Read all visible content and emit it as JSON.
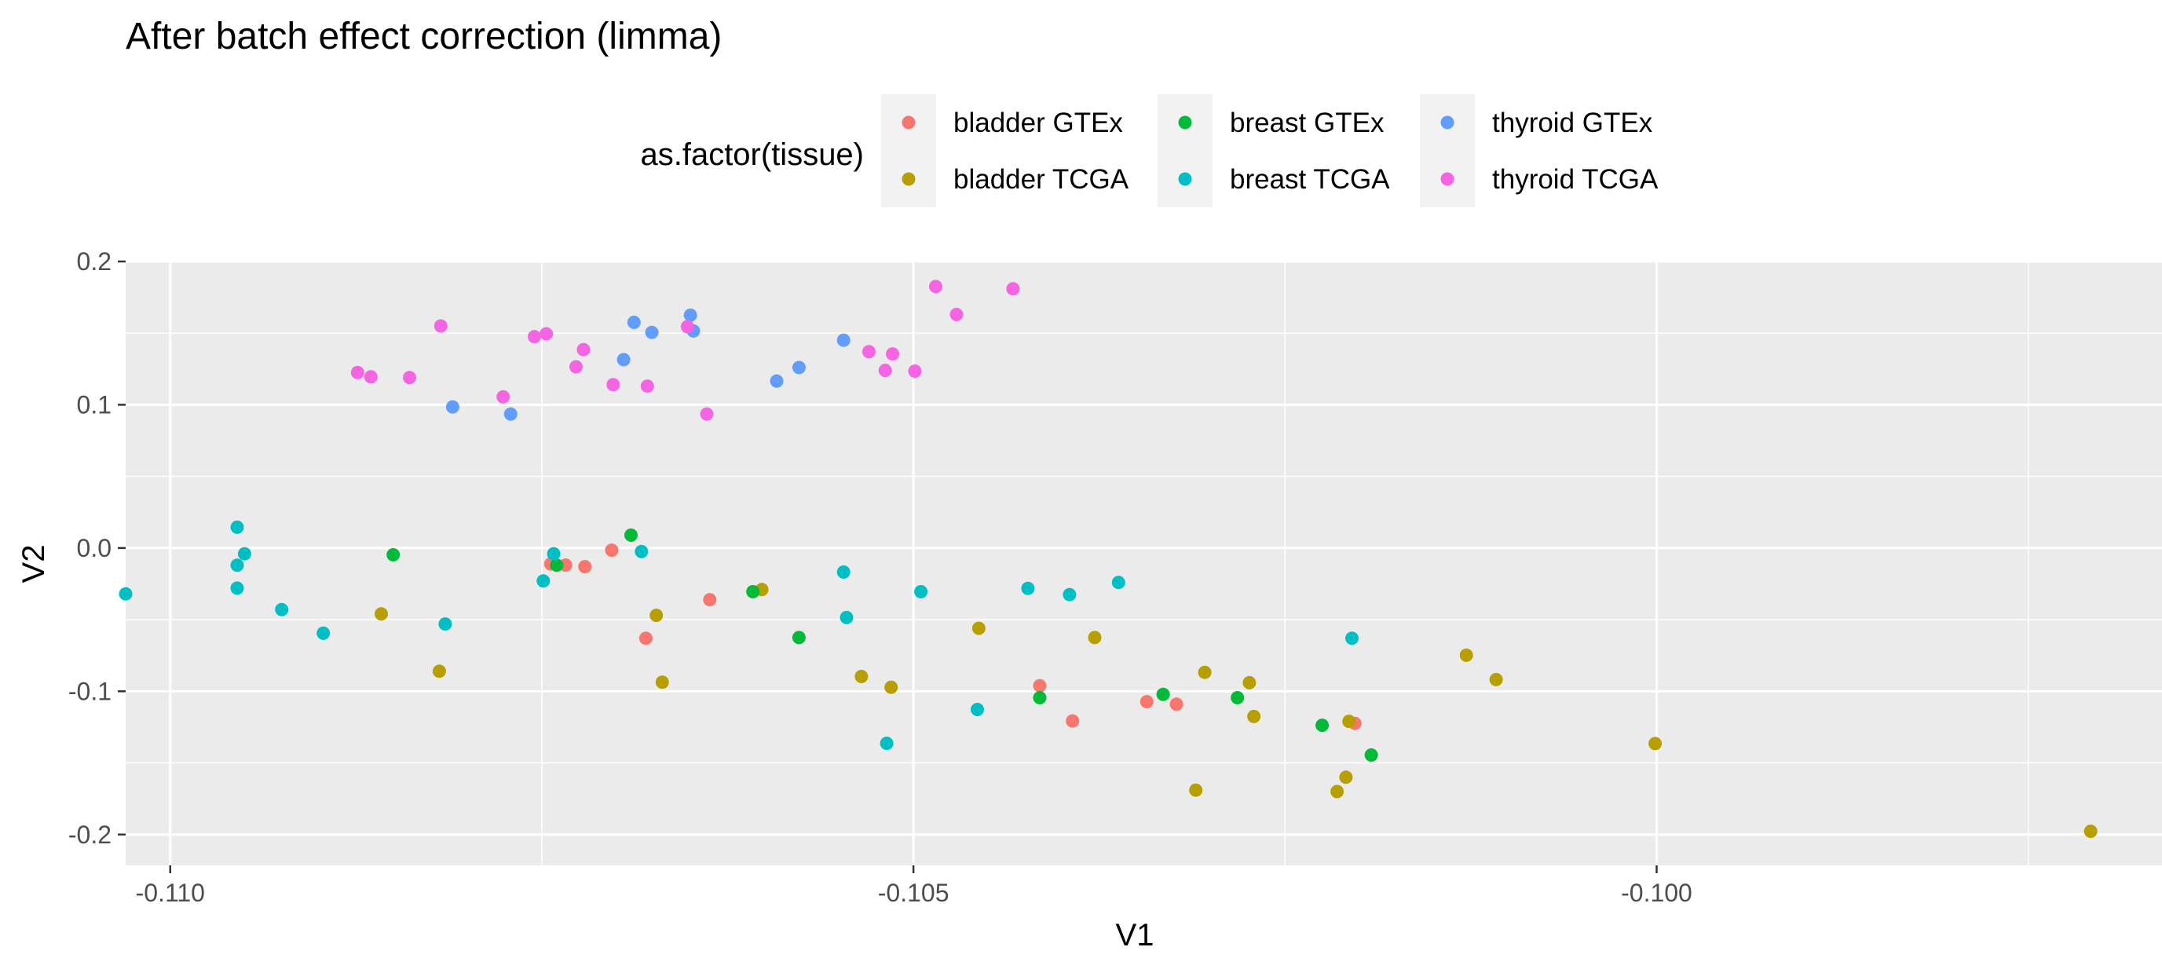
{
  "chart_data": {
    "type": "scatter",
    "title": "After batch effect correction (limma)",
    "xlabel": "V1",
    "ylabel": "V2",
    "xlim": [
      -0.1103,
      -0.0966
    ],
    "ylim": [
      -0.2215,
      0.2
    ],
    "x_ticks": [
      -0.11,
      -0.105,
      -0.1
    ],
    "x_tick_labels": [
      "-0.110",
      "-0.105",
      "-0.100"
    ],
    "y_ticks": [
      -0.2,
      -0.1,
      0.0,
      0.1,
      0.2
    ],
    "y_tick_labels": [
      "-0.2",
      "-0.1",
      "0.0",
      "0.1",
      "0.2"
    ],
    "grid": true,
    "legend": {
      "title": "as.factor(tissue)",
      "position": "top"
    },
    "series": [
      {
        "name": "bladder GTEx",
        "color": "#F8766D",
        "points": [
          [
            -0.10734,
            -0.0119
          ],
          [
            -0.10744,
            -0.0111
          ],
          [
            -0.10721,
            -0.013
          ],
          [
            -0.10703,
            -0.0015
          ],
          [
            -0.1068,
            -0.063
          ],
          [
            -0.10637,
            -0.0361
          ],
          [
            -0.10415,
            -0.0961
          ],
          [
            -0.10393,
            -0.1207
          ],
          [
            -0.10343,
            -0.1073
          ],
          [
            -0.10323,
            -0.109
          ],
          [
            -0.10203,
            -0.1224
          ]
        ]
      },
      {
        "name": "bladder TCGA",
        "color": "#B79F00",
        "points": [
          [
            -0.10858,
            -0.046
          ],
          [
            -0.10819,
            -0.086
          ],
          [
            -0.10673,
            -0.047
          ],
          [
            -0.10669,
            -0.0936
          ],
          [
            -0.10602,
            -0.029
          ],
          [
            -0.10535,
            -0.0897
          ],
          [
            -0.10515,
            -0.0972
          ],
          [
            -0.10456,
            -0.056
          ],
          [
            -0.10378,
            -0.0625
          ],
          [
            -0.10304,
            -0.0868
          ],
          [
            -0.1031,
            -0.169
          ],
          [
            -0.10274,
            -0.094
          ],
          [
            -0.10271,
            -0.1176
          ],
          [
            -0.10207,
            -0.121
          ],
          [
            -0.10209,
            -0.16
          ],
          [
            -0.10215,
            -0.17
          ],
          [
            -0.10128,
            -0.0748
          ],
          [
            -0.10108,
            -0.0918
          ],
          [
            -0.10001,
            -0.1365
          ],
          [
            -0.09708,
            -0.1977
          ]
        ]
      },
      {
        "name": "breast GTEx",
        "color": "#00BA38",
        "points": [
          [
            -0.1085,
            -0.0047
          ],
          [
            -0.1074,
            -0.012
          ],
          [
            -0.1069,
            0.009
          ],
          [
            -0.10608,
            -0.0305
          ],
          [
            -0.10577,
            -0.0625
          ],
          [
            -0.10415,
            -0.1045
          ],
          [
            -0.10332,
            -0.1022
          ],
          [
            -0.10282,
            -0.1045
          ],
          [
            -0.10225,
            -0.1237
          ],
          [
            -0.10192,
            -0.1445
          ]
        ]
      },
      {
        "name": "breast TCGA",
        "color": "#00BFC4",
        "points": [
          [
            -0.1103,
            -0.032
          ],
          [
            -0.10955,
            0.0145
          ],
          [
            -0.10955,
            -0.012
          ],
          [
            -0.10955,
            -0.028
          ],
          [
            -0.1095,
            -0.004
          ],
          [
            -0.10925,
            -0.043
          ],
          [
            -0.10897,
            -0.0595
          ],
          [
            -0.10815,
            -0.053
          ],
          [
            -0.10749,
            -0.023
          ],
          [
            -0.10742,
            -0.004
          ],
          [
            -0.10683,
            -0.0025
          ],
          [
            -0.10547,
            -0.0168
          ],
          [
            -0.10545,
            -0.0485
          ],
          [
            -0.10518,
            -0.1363
          ],
          [
            -0.10495,
            -0.0305
          ],
          [
            -0.10457,
            -0.1127
          ],
          [
            -0.10423,
            -0.0282
          ],
          [
            -0.10395,
            -0.0325
          ],
          [
            -0.10362,
            -0.024
          ],
          [
            -0.10205,
            -0.063
          ]
        ]
      },
      {
        "name": "thyroid GTEx",
        "color": "#619CFF",
        "points": [
          [
            -0.1081,
            0.0985
          ],
          [
            -0.10771,
            0.0935
          ],
          [
            -0.10695,
            0.1315
          ],
          [
            -0.10688,
            0.1575
          ],
          [
            -0.10676,
            0.1505
          ],
          [
            -0.1065,
            0.1625
          ],
          [
            -0.10648,
            0.1515
          ],
          [
            -0.10592,
            0.1165
          ],
          [
            -0.10577,
            0.126
          ],
          [
            -0.10547,
            0.145
          ]
        ]
      },
      {
        "name": "thyroid TCGA",
        "color": "#F564E3",
        "points": [
          [
            -0.10874,
            0.1225
          ],
          [
            -0.10865,
            0.1195
          ],
          [
            -0.10839,
            0.119
          ],
          [
            -0.10818,
            0.155
          ],
          [
            -0.10776,
            0.1055
          ],
          [
            -0.10755,
            0.1475
          ],
          [
            -0.10747,
            0.1495
          ],
          [
            -0.10727,
            0.1265
          ],
          [
            -0.10722,
            0.1385
          ],
          [
            -0.10702,
            0.114
          ],
          [
            -0.10679,
            0.113
          ],
          [
            -0.10652,
            0.1545
          ],
          [
            -0.10639,
            0.0935
          ],
          [
            -0.1053,
            0.137
          ],
          [
            -0.10519,
            0.124
          ],
          [
            -0.10514,
            0.1355
          ],
          [
            -0.10499,
            0.1235
          ],
          [
            -0.10485,
            0.1825
          ],
          [
            -0.10471,
            0.163
          ],
          [
            -0.10433,
            0.181
          ]
        ]
      }
    ]
  }
}
